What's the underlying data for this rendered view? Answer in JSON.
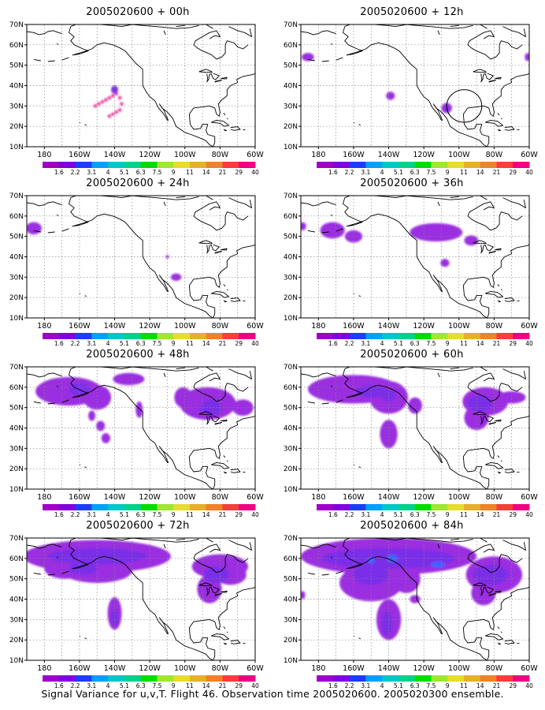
{
  "caption": "Signal Variance for u,v,T. Flight 46. Observation time 2005020600. 2005020300 ensemble.",
  "colors": {
    "levels": [
      "#a000c8",
      "#8200dc",
      "#1e3cff",
      "#00a0ff",
      "#00c8c8",
      "#00d28c",
      "#00dc00",
      "#a0e632",
      "#e6dc32",
      "#e6af2d",
      "#f08228",
      "#fa3c3c",
      "#f00082"
    ],
    "mid_purple": "#9a2fe0",
    "dark_purple": "#7a2ee8",
    "blue": "#3c64ff"
  },
  "chart_data": [
    {
      "type": "heatmap",
      "title": "2005020600 + 00h",
      "xlabel": "",
      "ylabel": "",
      "x_ticks": [
        "180",
        "160W",
        "140W",
        "120W",
        "100W",
        "80W",
        "60W"
      ],
      "y_ticks": [
        "10N",
        "20N",
        "30N",
        "40N",
        "50N",
        "60N",
        "70N"
      ],
      "xlim_lon": [
        -190,
        -60
      ],
      "ylim_lat": [
        10,
        70
      ],
      "grid": true,
      "colorbar": [
        "1.6",
        "2.2",
        "3.1",
        "4",
        "5.1",
        "6.3",
        "7.5",
        "9",
        "11",
        "14",
        "21",
        "29",
        "40"
      ],
      "regions": [
        {
          "lon": -140,
          "lat": 38,
          "level": 12,
          "rx": 0.8,
          "ry": 0.8
        },
        {
          "lon": -139,
          "lat": 36,
          "level": 12,
          "rx": 0.8,
          "ry": 0.8
        },
        {
          "lon": -141,
          "lat": 35,
          "level": 12,
          "rx": 0.8,
          "ry": 0.8
        },
        {
          "lon": -143,
          "lat": 34,
          "level": 12,
          "rx": 0.8,
          "ry": 0.8
        },
        {
          "lon": -145,
          "lat": 33,
          "level": 12,
          "rx": 0.8,
          "ry": 0.8
        },
        {
          "lon": -147,
          "lat": 32,
          "level": 12,
          "rx": 0.8,
          "ry": 0.8
        },
        {
          "lon": -149,
          "lat": 31,
          "level": 12,
          "rx": 0.8,
          "ry": 0.8
        },
        {
          "lon": -151,
          "lat": 30,
          "level": 12,
          "rx": 0.8,
          "ry": 0.8
        },
        {
          "lon": -137,
          "lat": 34,
          "level": 12,
          "rx": 0.8,
          "ry": 0.8
        },
        {
          "lon": -136,
          "lat": 31,
          "level": 12,
          "rx": 0.8,
          "ry": 0.8
        },
        {
          "lon": -137,
          "lat": 28,
          "level": 12,
          "rx": 0.8,
          "ry": 0.8
        },
        {
          "lon": -139,
          "lat": 27,
          "level": 12,
          "rx": 0.8,
          "ry": 0.8
        },
        {
          "lon": -141,
          "lat": 26,
          "level": 12,
          "rx": 0.8,
          "ry": 0.8
        },
        {
          "lon": -143,
          "lat": 25,
          "level": 12,
          "rx": 0.8,
          "ry": 0.8
        },
        {
          "lon": -140,
          "lat": 38,
          "level": 1,
          "rx": 2,
          "ry": 2
        }
      ]
    },
    {
      "type": "heatmap",
      "title": "2005020600 + 12h",
      "xlabel": "",
      "ylabel": "",
      "x_ticks": [
        "180",
        "160W",
        "140W",
        "120W",
        "100W",
        "80W",
        "60W"
      ],
      "y_ticks": [
        "10N",
        "20N",
        "30N",
        "40N",
        "50N",
        "60N",
        "70N"
      ],
      "xlim_lon": [
        -190,
        -60
      ],
      "ylim_lat": [
        10,
        70
      ],
      "grid": true,
      "colorbar": [
        "1.6",
        "2.2",
        "3.1",
        "4",
        "5.1",
        "6.3",
        "7.5",
        "9",
        "11",
        "14",
        "21",
        "29",
        "40"
      ],
      "regions": [
        {
          "lon": -186,
          "lat": 54,
          "level": 0,
          "rx": 3.5,
          "ry": 2
        },
        {
          "lon": -61,
          "lat": 54,
          "level": 0,
          "rx": 1.5,
          "ry": 2
        },
        {
          "lon": -139,
          "lat": 35,
          "level": 0,
          "rx": 2.5,
          "ry": 2
        },
        {
          "lon": -107,
          "lat": 29,
          "level": 0,
          "rx": 3,
          "ry": 2.5
        },
        {
          "lon": -107,
          "lat": 29,
          "level": 1,
          "rx": 1.5,
          "ry": 1
        }
      ],
      "circle": {
        "lon": -97,
        "lat": 30,
        "r_lon": 10,
        "r_lat": 8
      }
    },
    {
      "type": "heatmap",
      "title": "2005020600 + 24h",
      "xlabel": "",
      "ylabel": "",
      "x_ticks": [
        "180",
        "160W",
        "140W",
        "120W",
        "100W",
        "80W",
        "60W"
      ],
      "y_ticks": [
        "10N",
        "20N",
        "30N",
        "40N",
        "50N",
        "60N",
        "70N"
      ],
      "xlim_lon": [
        -190,
        -60
      ],
      "ylim_lat": [
        10,
        70
      ],
      "grid": true,
      "colorbar": [
        "1.6",
        "2.2",
        "3.1",
        "4",
        "5.1",
        "6.3",
        "7.5",
        "9",
        "11",
        "14",
        "21",
        "29",
        "40"
      ],
      "regions": [
        {
          "lon": -186,
          "lat": 54,
          "level": 0,
          "rx": 4.5,
          "ry": 3
        },
        {
          "lon": -110,
          "lat": 40,
          "level": 0,
          "rx": 1,
          "ry": 0.8
        },
        {
          "lon": -105,
          "lat": 30,
          "level": 0,
          "rx": 3,
          "ry": 1.8
        }
      ]
    },
    {
      "type": "heatmap",
      "title": "2005020600 + 36h",
      "xlabel": "",
      "ylabel": "",
      "x_ticks": [
        "180",
        "160W",
        "140W",
        "120W",
        "100W",
        "80W",
        "60W"
      ],
      "y_ticks": [
        "10N",
        "20N",
        "30N",
        "40N",
        "50N",
        "60N",
        "70N"
      ],
      "xlim_lon": [
        -190,
        -60
      ],
      "ylim_lat": [
        10,
        70
      ],
      "grid": true,
      "colorbar": [
        "1.6",
        "2.2",
        "3.1",
        "4",
        "5.1",
        "6.3",
        "7.5",
        "9",
        "11",
        "14",
        "21",
        "29",
        "40"
      ],
      "regions": [
        {
          "lon": -189,
          "lat": 55,
          "level": 0,
          "rx": 2,
          "ry": 2
        },
        {
          "lon": -172,
          "lat": 53,
          "level": 0,
          "rx": 7,
          "ry": 4
        },
        {
          "lon": -160,
          "lat": 50,
          "level": 0,
          "rx": 5,
          "ry": 3
        },
        {
          "lon": -113,
          "lat": 52,
          "level": 0,
          "rx": 15,
          "ry": 4.5
        },
        {
          "lon": -93,
          "lat": 48,
          "level": 0,
          "rx": 4,
          "ry": 2.5
        },
        {
          "lon": -108,
          "lat": 37,
          "level": 0,
          "rx": 2.5,
          "ry": 2
        }
      ]
    },
    {
      "type": "heatmap",
      "title": "2005020600 + 48h",
      "xlabel": "",
      "ylabel": "",
      "x_ticks": [
        "180",
        "160W",
        "140W",
        "120W",
        "100W",
        "80W",
        "60W"
      ],
      "y_ticks": [
        "10N",
        "20N",
        "30N",
        "40N",
        "50N",
        "60N",
        "70N"
      ],
      "xlim_lon": [
        -190,
        -60
      ],
      "ylim_lat": [
        10,
        70
      ],
      "grid": true,
      "colorbar": [
        "1.6",
        "2.2",
        "3.1",
        "4",
        "5.1",
        "6.3",
        "7.5",
        "9",
        "11",
        "14",
        "21",
        "29",
        "40"
      ],
      "regions": [
        {
          "lon": -166,
          "lat": 58,
          "level": 0,
          "rx": 19,
          "ry": 7
        },
        {
          "lon": -150,
          "lat": 55,
          "level": 0,
          "rx": 8,
          "ry": 6
        },
        {
          "lon": -132,
          "lat": 64,
          "level": 0,
          "rx": 9,
          "ry": 3
        },
        {
          "lon": -126,
          "lat": 49,
          "level": 0,
          "rx": 2,
          "ry": 4
        },
        {
          "lon": -153,
          "lat": 46,
          "level": 0,
          "rx": 2,
          "ry": 2.5
        },
        {
          "lon": -148,
          "lat": 41,
          "level": 0,
          "rx": 2.5,
          "ry": 2.5
        },
        {
          "lon": -145,
          "lat": 35,
          "level": 0,
          "rx": 2.5,
          "ry": 2.5
        },
        {
          "lon": -87,
          "lat": 52,
          "level": 0,
          "rx": 16,
          "ry": 8
        },
        {
          "lon": -101,
          "lat": 55,
          "level": 0,
          "rx": 5,
          "ry": 5
        },
        {
          "lon": -67,
          "lat": 50,
          "level": 0,
          "rx": 6,
          "ry": 4
        },
        {
          "lon": -85,
          "lat": 50,
          "level": 1,
          "rx": 6,
          "ry": 4
        },
        {
          "lon": -160,
          "lat": 59,
          "level": 1,
          "rx": 6,
          "ry": 3
        }
      ]
    },
    {
      "type": "heatmap",
      "title": "2005020600 + 60h",
      "xlabel": "",
      "ylabel": "",
      "x_ticks": [
        "180",
        "160W",
        "140W",
        "120W",
        "100W",
        "80W",
        "60W"
      ],
      "y_ticks": [
        "10N",
        "20N",
        "30N",
        "40N",
        "50N",
        "60N",
        "70N"
      ],
      "xlim_lon": [
        -190,
        -60
      ],
      "ylim_lat": [
        10,
        70
      ],
      "grid": true,
      "colorbar": [
        "1.6",
        "2.2",
        "3.1",
        "4",
        "5.1",
        "6.3",
        "7.5",
        "9",
        "11",
        "14",
        "21",
        "29",
        "40"
      ],
      "regions": [
        {
          "lon": -160,
          "lat": 59,
          "level": 0,
          "rx": 26,
          "ry": 7
        },
        {
          "lon": -140,
          "lat": 55,
          "level": 0,
          "rx": 11,
          "ry": 8
        },
        {
          "lon": -140,
          "lat": 37,
          "level": 0,
          "rx": 5,
          "ry": 7
        },
        {
          "lon": -125,
          "lat": 51,
          "level": 0,
          "rx": 4,
          "ry": 4
        },
        {
          "lon": -85,
          "lat": 53,
          "level": 0,
          "rx": 13,
          "ry": 7
        },
        {
          "lon": -90,
          "lat": 45,
          "level": 0,
          "rx": 7,
          "ry": 6
        },
        {
          "lon": -70,
          "lat": 55,
          "level": 0,
          "rx": 8,
          "ry": 3
        },
        {
          "lon": -150,
          "lat": 58,
          "level": 1,
          "rx": 9,
          "ry": 3
        },
        {
          "lon": -88,
          "lat": 52,
          "level": 1,
          "rx": 7,
          "ry": 4
        },
        {
          "lon": -140,
          "lat": 56,
          "level": 1,
          "rx": 4,
          "ry": 3
        }
      ]
    },
    {
      "type": "heatmap",
      "title": "2005020600 + 72h",
      "xlabel": "",
      "ylabel": "",
      "x_ticks": [
        "180",
        "160W",
        "140W",
        "120W",
        "100W",
        "80W",
        "60W"
      ],
      "y_ticks": [
        "10N",
        "20N",
        "30N",
        "40N",
        "50N",
        "60N",
        "70N"
      ],
      "xlim_lon": [
        -190,
        -60
      ],
      "ylim_lat": [
        10,
        70
      ],
      "grid": true,
      "colorbar": [
        "1.6",
        "2.2",
        "3.1",
        "4",
        "5.1",
        "6.3",
        "7.5",
        "9",
        "11",
        "14",
        "21",
        "29",
        "40"
      ],
      "regions": [
        {
          "lon": -150,
          "lat": 61,
          "level": 0,
          "rx": 42,
          "ry": 8
        },
        {
          "lon": -150,
          "lat": 54,
          "level": 0,
          "rx": 20,
          "ry": 6
        },
        {
          "lon": -168,
          "lat": 55,
          "level": 0,
          "rx": 12,
          "ry": 5
        },
        {
          "lon": -140,
          "lat": 33,
          "level": 0,
          "rx": 4,
          "ry": 8
        },
        {
          "lon": -80,
          "lat": 56,
          "level": 0,
          "rx": 16,
          "ry": 6
        },
        {
          "lon": -86,
          "lat": 45,
          "level": 0,
          "rx": 7,
          "ry": 7
        },
        {
          "lon": -74,
          "lat": 52,
          "level": 0,
          "rx": 9,
          "ry": 5
        },
        {
          "lon": -150,
          "lat": 61,
          "level": 1,
          "rx": 28,
          "ry": 4
        },
        {
          "lon": -158,
          "lat": 55,
          "level": 1,
          "rx": 8,
          "ry": 3
        },
        {
          "lon": -82,
          "lat": 52,
          "level": 1,
          "rx": 7,
          "ry": 4
        },
        {
          "lon": -140,
          "lat": 31,
          "level": 1,
          "rx": 2,
          "ry": 4
        }
      ]
    },
    {
      "type": "heatmap",
      "title": "2005020600 + 84h",
      "xlabel": "",
      "ylabel": "",
      "x_ticks": [
        "180",
        "160W",
        "140W",
        "120W",
        "100W",
        "80W",
        "60W"
      ],
      "y_ticks": [
        "10N",
        "20N",
        "30N",
        "40N",
        "50N",
        "60N",
        "70N"
      ],
      "xlim_lon": [
        -190,
        -60
      ],
      "ylim_lat": [
        10,
        70
      ],
      "grid": true,
      "colorbar": [
        "1.6",
        "2.2",
        "3.1",
        "4",
        "5.1",
        "6.3",
        "7.5",
        "9",
        "11",
        "14",
        "21",
        "29",
        "40"
      ],
      "regions": [
        {
          "lon": -140,
          "lat": 61,
          "level": 0,
          "rx": 50,
          "ry": 9
        },
        {
          "lon": -150,
          "lat": 48,
          "level": 0,
          "rx": 18,
          "ry": 9
        },
        {
          "lon": -140,
          "lat": 30,
          "level": 0,
          "rx": 7,
          "ry": 10
        },
        {
          "lon": -130,
          "lat": 50,
          "level": 0,
          "rx": 8,
          "ry": 7
        },
        {
          "lon": -80,
          "lat": 52,
          "level": 0,
          "rx": 16,
          "ry": 9
        },
        {
          "lon": -86,
          "lat": 43,
          "level": 0,
          "rx": 7,
          "ry": 6
        },
        {
          "lon": -189,
          "lat": 42,
          "level": 0,
          "rx": 1.5,
          "ry": 2
        },
        {
          "lon": -125,
          "lat": 40,
          "level": 0,
          "rx": 3,
          "ry": 2
        },
        {
          "lon": -140,
          "lat": 60,
          "level": 1,
          "rx": 38,
          "ry": 5
        },
        {
          "lon": -150,
          "lat": 52,
          "level": 1,
          "rx": 10,
          "ry": 5
        },
        {
          "lon": -82,
          "lat": 52,
          "level": 1,
          "rx": 10,
          "ry": 5
        },
        {
          "lon": -141,
          "lat": 28,
          "level": 1,
          "rx": 3,
          "ry": 6
        },
        {
          "lon": -138,
          "lat": 60,
          "level": 2,
          "rx": 3,
          "ry": 2
        },
        {
          "lon": -112,
          "lat": 57,
          "level": 2,
          "rx": 4,
          "ry": 1.5
        },
        {
          "lon": -150,
          "lat": 59,
          "level": 2,
          "rx": 2,
          "ry": 1.5
        }
      ]
    }
  ]
}
